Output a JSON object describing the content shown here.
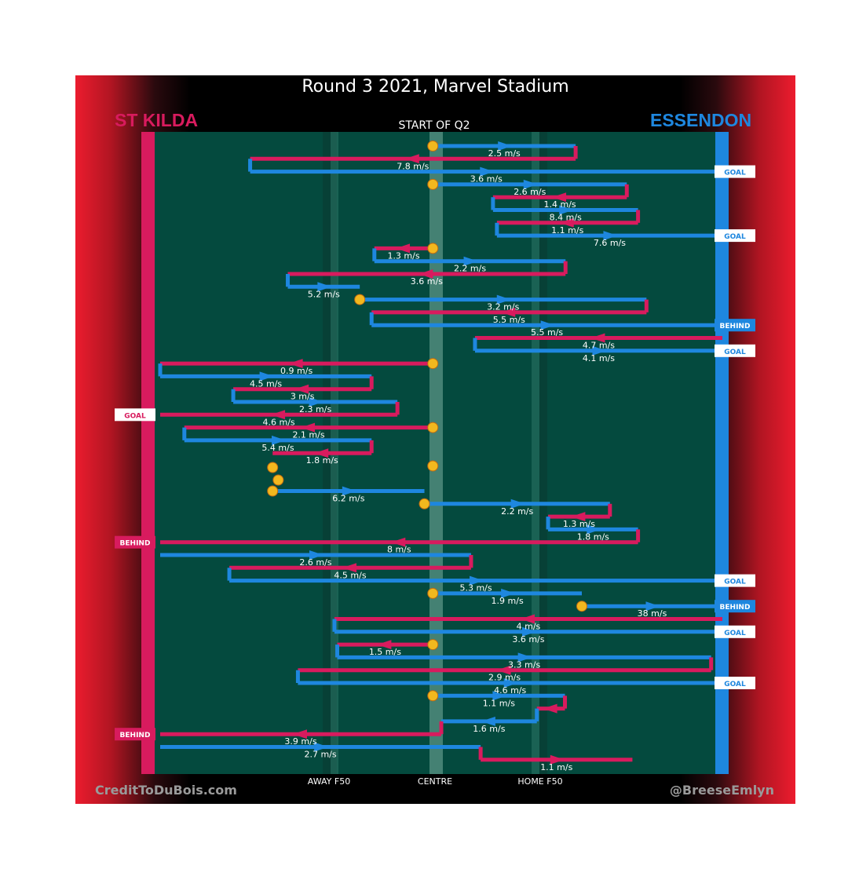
{
  "header": {
    "title": "Round 3 2021, Marvel Stadium",
    "subtitle": "START OF Q2",
    "home_team": "ST KILDA",
    "away_team": "ESSENDON"
  },
  "footer": {
    "credit_left": "CreditToDuBois.com",
    "credit_right": "@BreeseEmlyn",
    "zone_away_f50": "AWAY F50",
    "zone_centre": "CENTRE",
    "zone_home_f50": "HOME F50"
  },
  "colors": {
    "st_kilda": "#d81b5e",
    "essendon": "#1e87df",
    "ground": "#044a3e",
    "centre_marker": "#f2b81e"
  },
  "chart_data": {
    "type": "line",
    "title": "Round 3 2021, Marvel Stadium",
    "subtitle": "START OF Q2",
    "xlabel": "",
    "ylabel": "",
    "x_tick_labels": [
      "AWAY F50",
      "CENTRE",
      "HOME F50"
    ],
    "grid": false,
    "legend": "team names top-left (ST KILDA) and top-right (ESSENDON)",
    "series": [
      {
        "name": "ST KILDA"
      },
      {
        "name": "ESSENDON"
      }
    ],
    "chains": [
      {
        "start": "centre",
        "legs": [
          {
            "team": "essendon",
            "from": 0.485,
            "to": 0.739,
            "speed": "2.5 m/s"
          },
          {
            "team": "st_kilda",
            "from": 0.739,
            "to": 0.16,
            "speed": "7.8 m/s"
          },
          {
            "team": "essendon",
            "from": 0.16,
            "to": 1.0,
            "speed": "3.6 m/s"
          }
        ],
        "outcome": {
          "team": "essendon",
          "label": "GOAL"
        }
      },
      {
        "start": "centre",
        "legs": [
          {
            "team": "essendon",
            "from": 0.485,
            "to": 0.83,
            "speed": "2.6 m/s"
          },
          {
            "team": "st_kilda",
            "from": 0.83,
            "to": 0.592,
            "speed": "1.4 m/s"
          },
          {
            "team": "essendon",
            "from": 0.592,
            "to": 0.85,
            "speed": "8.4 m/s"
          },
          {
            "team": "st_kilda",
            "from": 0.85,
            "to": 0.599,
            "speed": "1.1 m/s"
          },
          {
            "team": "essendon",
            "from": 0.599,
            "to": 1.0,
            "speed": "7.6 m/s"
          }
        ],
        "outcome": {
          "team": "essendon",
          "label": "GOAL"
        }
      },
      {
        "start": "centre",
        "legs": [
          {
            "team": "st_kilda",
            "from": 0.485,
            "to": 0.381,
            "speed": "1.3 m/s"
          },
          {
            "team": "essendon",
            "from": 0.381,
            "to": 0.721,
            "speed": "2.2 m/s"
          },
          {
            "team": "st_kilda",
            "from": 0.721,
            "to": 0.227,
            "speed": "3.6 m/s"
          },
          {
            "team": "essendon",
            "from": 0.227,
            "to": 0.355,
            "speed": "5.2 m/s"
          }
        ],
        "outcome": null
      },
      {
        "start": "centre",
        "legs": [
          {
            "team": "essendon",
            "from": 0.355,
            "to": 0.865,
            "speed": "3.2 m/s"
          },
          {
            "team": "st_kilda",
            "from": 0.865,
            "to": 0.376,
            "speed": "5.5 m/s"
          },
          {
            "team": "essendon",
            "from": 0.376,
            "to": 1.0,
            "speed": "5.5 m/s"
          }
        ],
        "outcome": {
          "team": "essendon",
          "label": "BEHIND"
        }
      },
      {
        "start": "kick-in",
        "legs": [
          {
            "team": "st_kilda",
            "from": 1.0,
            "to": 0.56,
            "speed": "4.7 m/s"
          },
          {
            "team": "essendon",
            "from": 0.56,
            "to": 1.0,
            "speed": "4.1 m/s"
          }
        ],
        "outcome": {
          "team": "essendon",
          "label": "GOAL"
        }
      },
      {
        "start": "centre",
        "legs": [
          {
            "team": "st_kilda",
            "from": 0.485,
            "to": 0.0,
            "speed": "0.9 m/s"
          },
          {
            "team": "essendon",
            "from": 0.0,
            "to": 0.376,
            "speed": "4.5 m/s"
          },
          {
            "team": "st_kilda",
            "from": 0.376,
            "to": 0.13,
            "speed": "3 m/s"
          },
          {
            "team": "essendon",
            "from": 0.13,
            "to": 0.422,
            "speed": "2.3 m/s"
          },
          {
            "team": "st_kilda",
            "from": 0.422,
            "to": 0.0,
            "speed": "4.6 m/s"
          }
        ],
        "outcome": {
          "team": "st_kilda",
          "label": "GOAL"
        }
      },
      {
        "start": "centre",
        "legs": [
          {
            "team": "st_kilda",
            "from": 0.485,
            "to": 0.043,
            "speed": "2.1 m/s"
          },
          {
            "team": "essendon",
            "from": 0.043,
            "to": 0.376,
            "speed": "5.4 m/s"
          },
          {
            "team": "st_kilda",
            "from": 0.376,
            "to": 0.2,
            "speed": "1.8 m/s"
          }
        ],
        "outcome": null
      },
      {
        "start": "centre",
        "legs": [],
        "outcome": null
      },
      {
        "start": "centre",
        "legs": [
          {
            "team": "essendon",
            "from": 0.2,
            "to": 0.47,
            "speed": "6.2 m/s"
          }
        ],
        "outcome": null
      },
      {
        "start": "centre",
        "legs": [
          {
            "team": "essendon",
            "from": 0.47,
            "to": 0.8,
            "speed": "2.2 m/s"
          },
          {
            "team": "st_kilda",
            "from": 0.8,
            "to": 0.69,
            "speed": "1.3 m/s"
          },
          {
            "team": "essendon",
            "from": 0.69,
            "to": 0.85,
            "speed": "1.8 m/s"
          },
          {
            "team": "st_kilda",
            "from": 0.85,
            "to": 0.0,
            "speed": "8 m/s"
          }
        ],
        "outcome": {
          "team": "st_kilda",
          "label": "BEHIND"
        }
      },
      {
        "start": "kick-in",
        "legs": [
          {
            "team": "essendon",
            "from": 0.0,
            "to": 0.553,
            "speed": "2.6 m/s"
          },
          {
            "team": "st_kilda",
            "from": 0.553,
            "to": 0.123,
            "speed": "4.5 m/s"
          },
          {
            "team": "essendon",
            "from": 0.123,
            "to": 1.0,
            "speed": "5.3 m/s"
          }
        ],
        "outcome": {
          "team": "essendon",
          "label": "GOAL"
        }
      },
      {
        "start": "centre",
        "legs": [
          {
            "team": "essendon",
            "from": 0.485,
            "to": 0.75,
            "speed": "1.9 m/s"
          }
        ],
        "outcome": null
      },
      {
        "start": "centre",
        "legs": [
          {
            "team": "essendon",
            "from": 0.75,
            "to": 1.0,
            "speed": "38 m/s"
          }
        ],
        "outcome": {
          "team": "essendon",
          "label": "BEHIND"
        }
      },
      {
        "start": "kick-in",
        "legs": [
          {
            "team": "st_kilda",
            "from": 1.0,
            "to": 0.31,
            "speed": "4 m/s"
          },
          {
            "team": "essendon",
            "from": 0.31,
            "to": 1.0,
            "speed": "3.6 m/s"
          }
        ],
        "outcome": {
          "team": "essendon",
          "label": "GOAL"
        }
      },
      {
        "start": "centre",
        "legs": [
          {
            "team": "st_kilda",
            "from": 0.485,
            "to": 0.315,
            "speed": "1.5 m/s"
          },
          {
            "team": "essendon",
            "from": 0.315,
            "to": 0.98,
            "speed": "3.3 m/s"
          },
          {
            "team": "st_kilda",
            "from": 0.98,
            "to": 0.245,
            "speed": "2.9 m/s"
          },
          {
            "team": "essendon",
            "from": 0.245,
            "to": 1.0,
            "speed": "4.6 m/s"
          }
        ],
        "outcome": {
          "team": "essendon",
          "label": "GOAL"
        }
      },
      {
        "start": "centre",
        "legs": [
          {
            "team": "essendon",
            "from": 0.485,
            "to": 0.72,
            "speed": "1.1 m/s"
          },
          {
            "team": "st_kilda",
            "from": 0.72,
            "to": 0.67,
            "speed": ""
          },
          {
            "team": "essendon",
            "from": 0.67,
            "to": 0.5,
            "speed": "1.6 m/s"
          },
          {
            "team": "st_kilda",
            "from": 0.5,
            "to": 0.0,
            "speed": "3.9 m/s"
          }
        ],
        "outcome": {
          "team": "st_kilda",
          "label": "BEHIND"
        }
      },
      {
        "start": "kick-in",
        "legs": [
          {
            "team": "essendon",
            "from": 0.0,
            "to": 0.57,
            "speed": "2.7 m/s"
          },
          {
            "team": "st_kilda",
            "from": 0.57,
            "to": 0.84,
            "speed": "1.1 m/s"
          }
        ],
        "outcome": null
      }
    ]
  }
}
